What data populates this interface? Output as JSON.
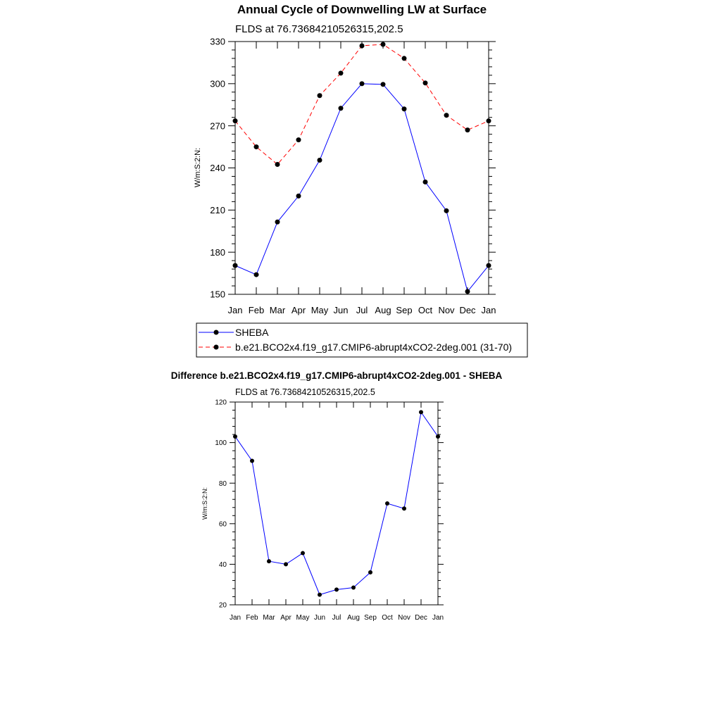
{
  "page_title": "Annual Cycle of Downwelling LW at Surface",
  "chart_data": [
    {
      "type": "line",
      "title": "Annual Cycle of Downwelling LW at Surface",
      "subtitle": "FLDS at 76.73684210526315,202.5",
      "xlabel": "",
      "ylabel": "W/m:S:2:N:",
      "categories": [
        "Jan",
        "Feb",
        "Mar",
        "Apr",
        "May",
        "Jun",
        "Jul",
        "Aug",
        "Sep",
        "Oct",
        "Nov",
        "Dec",
        "Jan"
      ],
      "ylim": [
        150,
        330
      ],
      "yticks": [
        150,
        180,
        210,
        240,
        270,
        300,
        330
      ],
      "legend": "bottom",
      "series": [
        {
          "name": "SHEBA",
          "color": "#0000ff",
          "dash": "solid",
          "values": [
            170.5,
            164,
            201.5,
            220,
            245.5,
            282.5,
            300,
            299.5,
            282,
            230,
            209.5,
            152,
            170.5
          ]
        },
        {
          "name": "b.e21.BCO2x4.f19_g17.CMIP6-abrupt4xCO2-2deg.001 (31-70)",
          "color": "#ff0000",
          "dash": "dashed",
          "values": [
            273.5,
            255,
            242.5,
            260,
            291.5,
            307.5,
            327,
            328,
            318,
            300.5,
            277.5,
            267,
            273.5
          ]
        }
      ]
    },
    {
      "type": "line",
      "title": "Difference b.e21.BCO2x4.f19_g17.CMIP6-abrupt4xCO2-2deg.001 - SHEBA",
      "subtitle": "FLDS at 76.73684210526315,202.5",
      "xlabel": "",
      "ylabel": "W/m:S:2:N:",
      "categories": [
        "Jan",
        "Feb",
        "Mar",
        "Apr",
        "May",
        "Jun",
        "Jul",
        "Aug",
        "Sep",
        "Oct",
        "Nov",
        "Dec",
        "Jan"
      ],
      "ylim": [
        20,
        120
      ],
      "yticks": [
        20,
        40,
        60,
        80,
        100,
        120
      ],
      "series": [
        {
          "name": "Difference",
          "color": "#0000ff",
          "dash": "solid",
          "values": [
            103,
            91,
            41.5,
            40,
            45.5,
            25,
            27.5,
            28.5,
            36,
            70,
            67.5,
            115,
            103
          ]
        }
      ]
    }
  ]
}
